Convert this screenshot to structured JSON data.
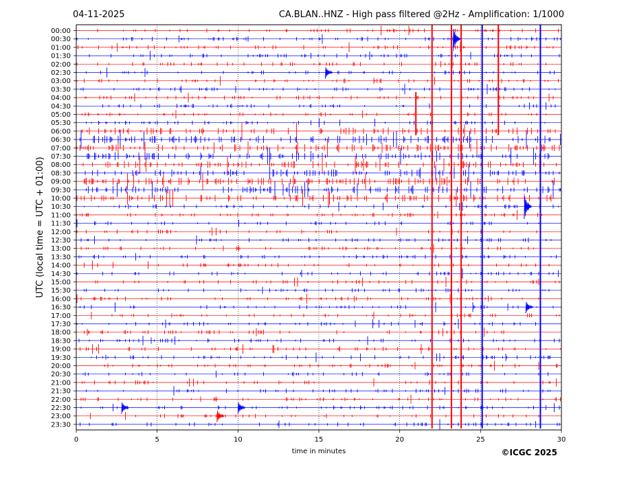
{
  "header": {
    "date": "04-11-2025",
    "title": "CA.BLAN..HNZ - High pass filtered @2Hz - Amplification: 1/1000"
  },
  "footer": {
    "copyright": "©ICGC 2025"
  },
  "chart_data": {
    "type": "line",
    "title": "CA.BLAN..HNZ - High pass filtered @2Hz - Amplification: 1/1000",
    "xlabel": "time in minutes",
    "ylabel": "UTC (local time = UTC + 01:00)",
    "xlim": [
      0,
      30
    ],
    "x_ticks": [
      "0",
      "5",
      "10",
      "15",
      "20",
      "25",
      "30"
    ],
    "grid": "vertical dotted lines every 5 minutes",
    "trace_colors": [
      "#ff0000",
      "#0000ff"
    ],
    "row_labels": [
      "00:00",
      "00:30",
      "01:00",
      "01:30",
      "02:00",
      "02:30",
      "03:00",
      "03:30",
      "04:00",
      "04:30",
      "05:00",
      "05:30",
      "06:00",
      "06:30",
      "07:00",
      "07:30",
      "08:00",
      "08:30",
      "09:00",
      "09:30",
      "10:00",
      "10:30",
      "11:00",
      "11:30",
      "12:00",
      "12:30",
      "13:00",
      "13:30",
      "14:00",
      "14:30",
      "15:00",
      "15:30",
      "16:00",
      "16:30",
      "17:00",
      "17:30",
      "18:00",
      "18:30",
      "19:00",
      "19:30",
      "20:00",
      "20:30",
      "21:00",
      "21:30",
      "22:00",
      "22:30",
      "23:00",
      "23:30"
    ],
    "persistent_vertical_events_minutes": [
      {
        "minute": 21.0,
        "color": "#ff0000",
        "from_row": "04:00",
        "to_row": "06:00"
      },
      {
        "minute": 22.0,
        "color": "#ff0000",
        "from_row": "00:00",
        "to_row": "23:30"
      },
      {
        "minute": 23.2,
        "color": "#ff0000",
        "from_row": "00:00",
        "to_row": "23:30"
      },
      {
        "minute": 23.8,
        "color": "#ff0000",
        "from_row": "00:00",
        "to_row": "23:30"
      },
      {
        "minute": 25.1,
        "color": "#0000ff",
        "from_row": "00:00",
        "to_row": "23:30"
      },
      {
        "minute": 26.1,
        "color": "#ff0000",
        "from_row": "00:00",
        "to_row": "06:00"
      },
      {
        "minute": 28.7,
        "color": "#0000ff",
        "from_row": "00:00",
        "to_row": "23:30"
      }
    ],
    "notable_events": [
      {
        "row": "00:30",
        "minute": 23.3,
        "amplitude": "large"
      },
      {
        "row": "02:30",
        "minute": 15.4,
        "amplitude": "medium"
      },
      {
        "row": "10:30",
        "minute": 27.7,
        "amplitude": "large"
      },
      {
        "row": "16:30",
        "minute": 27.8,
        "amplitude": "medium"
      },
      {
        "row": "22:30",
        "minute": 2.8,
        "amplitude": "medium"
      },
      {
        "row": "22:30",
        "minute": 10.0,
        "amplitude": "medium"
      },
      {
        "row": "23:00",
        "minute": 8.7,
        "amplitude": "medium"
      }
    ]
  }
}
